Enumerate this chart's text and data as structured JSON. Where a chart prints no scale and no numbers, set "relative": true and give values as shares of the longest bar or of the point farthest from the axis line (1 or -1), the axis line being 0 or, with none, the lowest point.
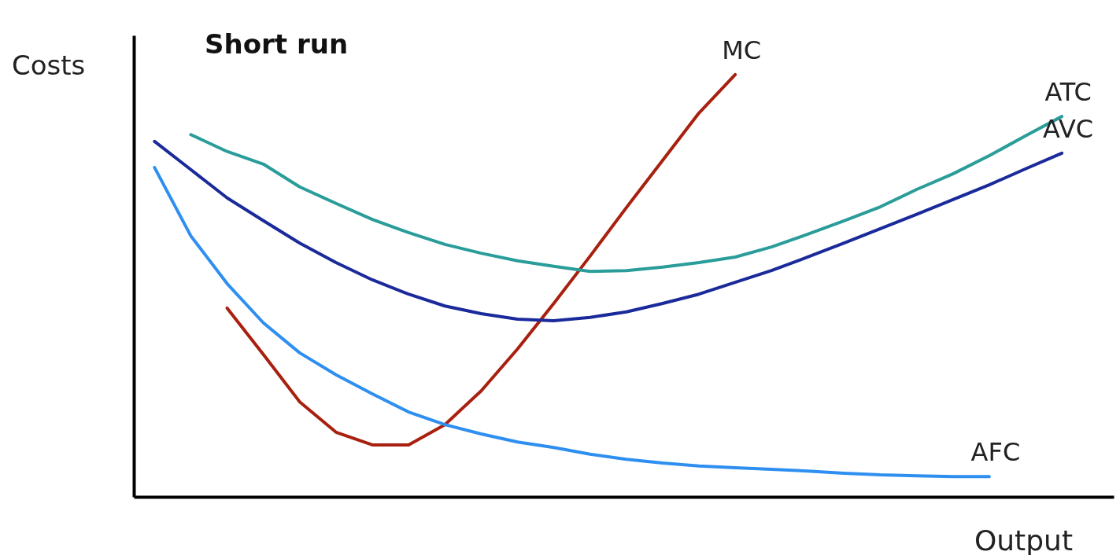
{
  "chart_data": {
    "type": "line",
    "relative": true,
    "title": "Short run",
    "xlabel": "Output",
    "annotations": [
      "Costs"
    ],
    "categories": [
      null,
      null,
      null,
      null,
      null,
      null,
      null,
      null,
      null,
      null,
      null,
      null,
      null,
      null,
      null,
      null,
      null,
      null,
      null,
      null,
      null,
      null,
      null,
      null,
      null,
      null
    ],
    "series": [
      {
        "name": "MC",
        "color": "#a8200f",
        "values": [
          null,
          null,
          0.447,
          0.337,
          0.225,
          0.153,
          0.123,
          0.123,
          0.171,
          0.251,
          0.35,
          0.458,
          0.57,
          0.685,
          0.797,
          0.909,
          1,
          null,
          null,
          null,
          null,
          null,
          null,
          null,
          null,
          null
        ]
      },
      {
        "name": "ATC",
        "color": "#2a9d9a",
        "values": [
          null,
          0.858,
          0.818,
          0.788,
          0.734,
          0.695,
          0.657,
          0.626,
          0.598,
          0.577,
          0.559,
          0.546,
          0.534,
          0.536,
          0.544,
          0.555,
          0.568,
          0.592,
          0.622,
          0.654,
          0.687,
          0.728,
          0.765,
          0.808,
          0.855,
          0.901
        ]
      },
      {
        "name": "AVC",
        "color": "#1a2a9a",
        "values": [
          0.842,
          0.775,
          0.708,
          0.654,
          0.601,
          0.555,
          0.514,
          0.48,
          0.452,
          0.434,
          0.421,
          0.417,
          0.425,
          0.438,
          0.458,
          0.48,
          0.508,
          0.536,
          0.568,
          0.601,
          0.635,
          0.669,
          0.704,
          0.739,
          0.777,
          0.814
        ]
      },
      {
        "name": "AFC",
        "color": "#2f8ff0",
        "values": [
          0.78,
          0.618,
          0.505,
          0.412,
          0.341,
          0.289,
          0.244,
          0.201,
          0.171,
          0.149,
          0.13,
          0.117,
          0.101,
          0.089,
          0.08,
          0.073,
          0.069,
          0.065,
          0.061,
          0.056,
          0.052,
          0.05,
          0.048,
          0.048,
          null,
          null
        ]
      }
    ]
  }
}
